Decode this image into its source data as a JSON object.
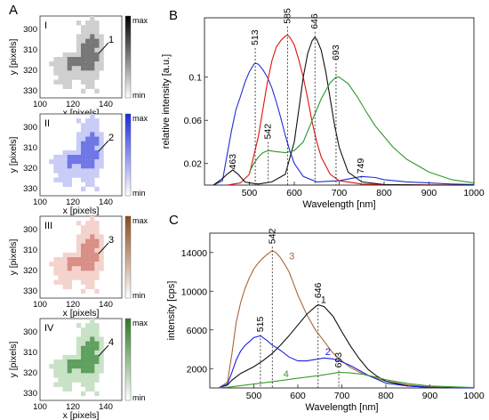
{
  "figure": {
    "panel_labels": {
      "a": "A",
      "b": "B",
      "c": "C"
    }
  },
  "maps": {
    "xlabel": "x [pixels]",
    "ylabel": "y [pixels]",
    "x_ticks": [
      "100",
      "120",
      "140"
    ],
    "y_ticks": [
      "300",
      "310",
      "320",
      "330"
    ],
    "colorbar": {
      "max": "max",
      "min": "min"
    },
    "panels": [
      {
        "roman": "I",
        "pointer": "1",
        "color": "#777777",
        "light": "#cfcfcf",
        "bar_top": "#000000"
      },
      {
        "roman": "II",
        "pointer": "2",
        "color": "#6f76e6",
        "light": "#c9ccf6",
        "bar_top": "#1a2ae0"
      },
      {
        "roman": "III",
        "pointer": "3",
        "color": "#d98f86",
        "light": "#f4d3cd",
        "bar_top": "#8a4a1a"
      },
      {
        "roman": "IV",
        "pointer": "4",
        "color": "#5fa05f",
        "light": "#c8e2c6",
        "bar_top": "#2a7a22"
      }
    ]
  },
  "chart_data": [
    {
      "id": "B",
      "type": "line",
      "xlabel": "Wavelength [nm]",
      "ylabel": "relative intensity [a.u.]",
      "xlim": [
        400,
        1000
      ],
      "ylim": [
        0,
        0.155
      ],
      "x_ticks": [
        500,
        600,
        700,
        800,
        900,
        1000
      ],
      "y_ticks": [
        0.02,
        0.06,
        0.1
      ],
      "y_tick_labels": [
        "0.02",
        "0.06",
        "0.1"
      ],
      "grid": false,
      "peak_labels": [
        {
          "text": "513",
          "x": 513,
          "y": 0.127,
          "dashed": true
        },
        {
          "text": "585",
          "x": 585,
          "y": 0.147,
          "dashed": true
        },
        {
          "text": "646",
          "x": 646,
          "y": 0.142,
          "dashed": true
        },
        {
          "text": "693",
          "x": 693,
          "y": 0.113,
          "dashed": true
        },
        {
          "text": "542",
          "x": 542,
          "y": 0.04,
          "dashed": true
        },
        {
          "text": "463",
          "x": 463,
          "y": 0.012,
          "dashed": false
        },
        {
          "text": "749",
          "x": 749,
          "y": 0.008,
          "dashed": true
        }
      ],
      "series": [
        {
          "color": "#1f2fd0",
          "x": [
            420,
            440,
            460,
            470,
            480,
            490,
            500,
            510,
            513,
            520,
            530,
            540,
            550,
            560,
            570,
            580,
            590,
            600,
            620,
            650,
            700,
            750,
            780,
            800,
            850,
            900,
            950,
            1000
          ],
          "y": [
            0,
            0.004,
            0.05,
            0.07,
            0.082,
            0.095,
            0.105,
            0.112,
            0.113,
            0.112,
            0.107,
            0.1,
            0.09,
            0.077,
            0.062,
            0.046,
            0.032,
            0.02,
            0.008,
            0.003,
            0.004,
            0.008,
            0.007,
            0.005,
            0.003,
            0.002,
            0.001,
            0.0005
          ]
        },
        {
          "color": "#e01010",
          "x": [
            450,
            480,
            500,
            520,
            540,
            550,
            560,
            570,
            580,
            585,
            590,
            600,
            610,
            620,
            630,
            640,
            650,
            660,
            680,
            700,
            750,
            800,
            900,
            1000
          ],
          "y": [
            0,
            0.002,
            0.01,
            0.045,
            0.095,
            0.115,
            0.128,
            0.134,
            0.138,
            0.139,
            0.137,
            0.13,
            0.116,
            0.1,
            0.08,
            0.058,
            0.04,
            0.026,
            0.01,
            0.004,
            0.001,
            0.0005,
            0.0002,
            0
          ]
        },
        {
          "color": "#111111",
          "x": [
            420,
            440,
            450,
            463,
            475,
            490,
            500,
            520,
            550,
            580,
            600,
            610,
            620,
            630,
            640,
            646,
            650,
            660,
            670,
            680,
            690,
            700,
            720,
            750,
            800,
            900,
            1000
          ],
          "y": [
            0,
            0.006,
            0.01,
            0.014,
            0.01,
            0.003,
            0.002,
            0.001,
            0.003,
            0.01,
            0.04,
            0.07,
            0.1,
            0.122,
            0.134,
            0.137,
            0.135,
            0.125,
            0.105,
            0.08,
            0.055,
            0.035,
            0.012,
            0.003,
            0.0005,
            0,
            0
          ]
        },
        {
          "color": "#2a9a2a",
          "x": [
            500,
            510,
            520,
            530,
            542,
            560,
            580,
            600,
            620,
            640,
            660,
            680,
            693,
            700,
            720,
            740,
            760,
            780,
            800,
            820,
            850,
            900,
            950,
            1000
          ],
          "y": [
            0.012,
            0.02,
            0.026,
            0.03,
            0.032,
            0.031,
            0.03,
            0.032,
            0.04,
            0.06,
            0.08,
            0.095,
            0.1,
            0.1,
            0.094,
            0.082,
            0.068,
            0.055,
            0.045,
            0.035,
            0.024,
            0.012,
            0.005,
            0.002
          ]
        }
      ]
    },
    {
      "id": "C",
      "type": "line",
      "xlabel": "Wavelength [nm]",
      "ylabel": "intensity [cps]",
      "xlim": [
        400,
        1000
      ],
      "ylim": [
        0,
        16000
      ],
      "x_ticks": [
        500,
        600,
        700,
        800,
        900,
        1000
      ],
      "y_ticks": [
        2000,
        6000,
        10000,
        14000
      ],
      "y_tick_labels": [
        "2000",
        "6000",
        "10000",
        "14000"
      ],
      "grid": false,
      "peak_labels": [
        {
          "text": "542",
          "x": 542,
          "y": 14600,
          "dashed": true
        },
        {
          "text": "646",
          "x": 646,
          "y": 9000,
          "dashed": true
        },
        {
          "text": "515",
          "x": 515,
          "y": 5500,
          "dashed": true
        },
        {
          "text": "693",
          "x": 693,
          "y": 1800,
          "dashed": true
        }
      ],
      "series": [
        {
          "name": "3",
          "color": "#a8663a",
          "x": [
            420,
            440,
            450,
            460,
            470,
            480,
            490,
            500,
            510,
            520,
            530,
            542,
            550,
            560,
            570,
            580,
            590,
            600,
            620,
            640,
            660,
            680,
            700,
            720,
            750,
            800,
            850,
            900,
            950,
            1000
          ],
          "y": [
            0,
            600,
            3500,
            6800,
            8800,
            10300,
            11400,
            12300,
            12900,
            13400,
            13800,
            14200,
            14000,
            13500,
            12800,
            12000,
            10800,
            9600,
            7600,
            6000,
            4800,
            3600,
            2800,
            2100,
            1400,
            700,
            300,
            100,
            30,
            0
          ]
        },
        {
          "name": "1",
          "color": "#111111",
          "x": [
            420,
            440,
            450,
            470,
            500,
            520,
            540,
            560,
            580,
            600,
            620,
            640,
            646,
            660,
            680,
            700,
            720,
            740,
            760,
            780,
            800,
            850,
            900,
            1000
          ],
          "y": [
            0,
            300,
            800,
            1500,
            2200,
            2800,
            3500,
            4400,
            5400,
            6500,
            7600,
            8400,
            8600,
            8400,
            7400,
            5800,
            4300,
            3000,
            1900,
            1200,
            700,
            200,
            60,
            0
          ]
        },
        {
          "name": "2",
          "color": "#1a20e0",
          "x": [
            420,
            440,
            450,
            460,
            470,
            480,
            490,
            500,
            515,
            530,
            540,
            560,
            580,
            600,
            620,
            640,
            660,
            680,
            700,
            720,
            740,
            760,
            780,
            800,
            850,
            900,
            1000
          ],
          "y": [
            0,
            400,
            1600,
            2900,
            3800,
            4400,
            4800,
            5200,
            5400,
            4900,
            4500,
            3900,
            3200,
            2800,
            2800,
            2950,
            3100,
            3000,
            2700,
            2300,
            1800,
            1300,
            900,
            500,
            200,
            60,
            0
          ]
        },
        {
          "name": "4",
          "color": "#3a9a2a",
          "x": [
            420,
            450,
            500,
            550,
            600,
            650,
            693,
            700,
            720,
            750,
            780,
            800,
            850,
            900,
            1000
          ],
          "y": [
            0,
            120,
            400,
            700,
            1000,
            1300,
            1600,
            1600,
            1550,
            1400,
            1100,
            850,
            450,
            200,
            50
          ]
        }
      ],
      "series_label_x": [
        568,
        640,
        650,
        555
      ]
    }
  ]
}
